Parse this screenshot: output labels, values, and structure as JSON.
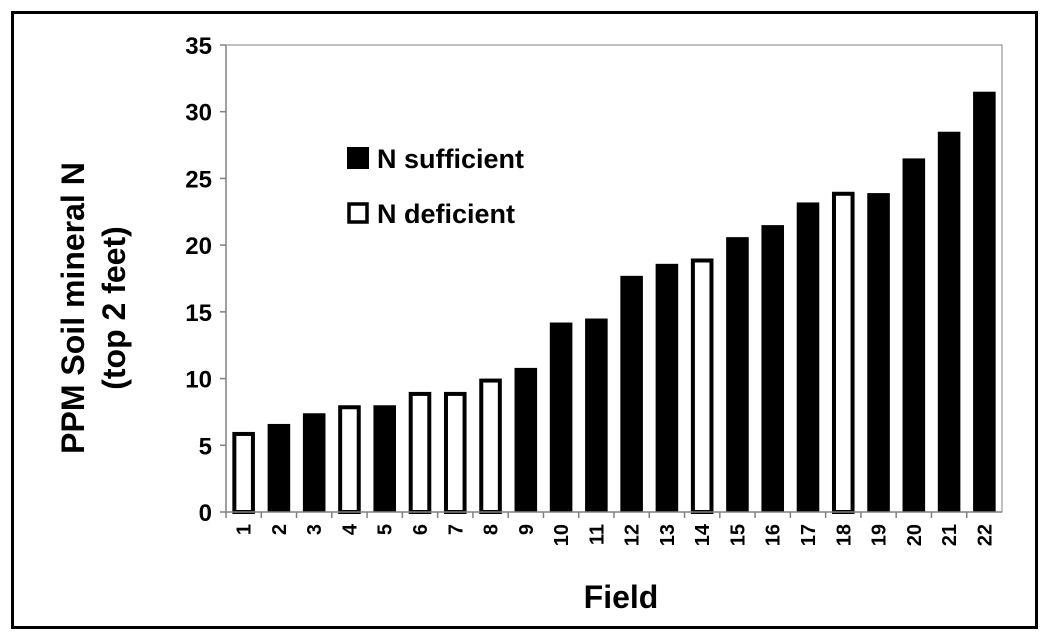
{
  "chart_data": {
    "type": "bar",
    "title": "",
    "xlabel": "Field",
    "ylabel_line1": "PPM Soil mineral N",
    "ylabel_line2": "(top 2 feet)",
    "ylim": [
      0,
      35
    ],
    "yticks": [
      0,
      5,
      10,
      15,
      20,
      25,
      30,
      35
    ],
    "grid": false,
    "legend_position": "upper-left",
    "categories": [
      "1",
      "2",
      "3",
      "4",
      "5",
      "6",
      "7",
      "8",
      "9",
      "10",
      "11",
      "12",
      "13",
      "14",
      "15",
      "16",
      "17",
      "18",
      "19",
      "20",
      "21",
      "22"
    ],
    "values": [
      6,
      6.6,
      7.4,
      8,
      8,
      9,
      9,
      10,
      10.8,
      14.2,
      14.5,
      17.7,
      18.6,
      19,
      20.6,
      21.5,
      23.2,
      24,
      23.9,
      26.5,
      28.5,
      31.5
    ],
    "series": [
      {
        "name": "N sufficient",
        "color": "#000000",
        "fill": "#000000",
        "fields": [
          "2",
          "3",
          "5",
          "9",
          "10",
          "11",
          "12",
          "13",
          "15",
          "16",
          "17",
          "19",
          "20",
          "21",
          "22"
        ]
      },
      {
        "name": "N deficient",
        "color": "#000000",
        "fill": "#ffffff",
        "fields": [
          "1",
          "4",
          "6",
          "7",
          "8",
          "14",
          "18"
        ]
      }
    ]
  }
}
